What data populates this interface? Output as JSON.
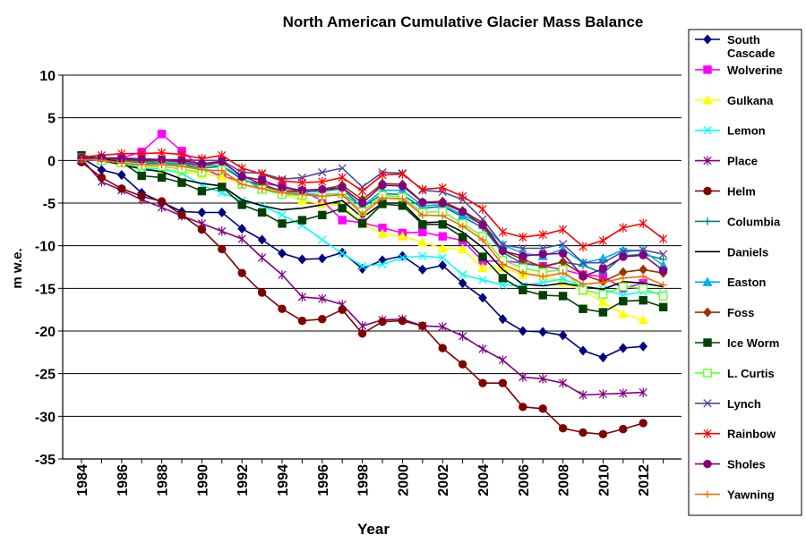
{
  "chart_data": {
    "type": "line",
    "title": "North American Cumulative Glacier Mass Balance",
    "xlabel": "Year",
    "ylabel": "m w.e.",
    "ylim": [
      -35,
      10
    ],
    "xlim": [
      1984,
      2013
    ],
    "yticks": [
      10,
      5,
      0,
      -5,
      -10,
      -15,
      -20,
      -25,
      -30,
      -35
    ],
    "xticks": [
      1984,
      1986,
      1988,
      1990,
      1992,
      1994,
      1996,
      1998,
      2000,
      2002,
      2004,
      2006,
      2008,
      2010,
      2012
    ],
    "grid": "horizontal",
    "legend_position": "right",
    "series": [
      {
        "name": "South Cascade",
        "color": "#000080",
        "marker": "diamond",
        "x": [
          1984,
          1985,
          1986,
          1987,
          1988,
          1989,
          1990,
          1991,
          1992,
          1993,
          1994,
          1995,
          1996,
          1997,
          1998,
          1999,
          2000,
          2001,
          2002,
          2003,
          2004,
          2005,
          2006,
          2007,
          2008,
          2009,
          2010,
          2011,
          2012
        ],
        "values": [
          0.3,
          -1.1,
          -1.7,
          -3.8,
          -4.9,
          -6.0,
          -6.1,
          -6.1,
          -8.0,
          -9.3,
          -10.9,
          -11.6,
          -11.5,
          -10.8,
          -12.7,
          -11.7,
          -11.2,
          -12.8,
          -12.3,
          -14.4,
          -16.1,
          -18.6,
          -20.0,
          -20.1,
          -20.5,
          -22.3,
          -23.1,
          -22.0,
          -21.8
        ]
      },
      {
        "name": "Wolverine",
        "color": "#FF00FF",
        "marker": "square",
        "x": [
          1984,
          1985,
          1986,
          1987,
          1988,
          1989,
          1990,
          1991,
          1992,
          1993,
          1994,
          1995,
          1996,
          1997,
          1998,
          1999,
          2000,
          2001,
          2002,
          2003,
          2004,
          2005,
          2006,
          2007,
          2008,
          2009,
          2010,
          2011,
          2012
        ],
        "values": [
          0.0,
          0.2,
          0.3,
          1.0,
          3.1,
          1.1,
          -0.9,
          -1.9,
          -2.4,
          -2.7,
          -3.0,
          -3.6,
          -4.7,
          -7.0,
          -7.3,
          -7.9,
          -8.5,
          -8.4,
          -8.9,
          -9.4,
          -11.8,
          -11.8,
          -12.0,
          -12.4,
          -12.8,
          -13.4,
          -13.6,
          -15.0,
          -14.4
        ]
      },
      {
        "name": "Gulkana",
        "color": "#FFFF00",
        "marker": "triangle",
        "x": [
          1984,
          1985,
          1986,
          1987,
          1988,
          1989,
          1990,
          1991,
          1992,
          1993,
          1994,
          1995,
          1996,
          1997,
          1998,
          1999,
          2000,
          2001,
          2002,
          2003,
          2004,
          2005,
          2006,
          2007,
          2008,
          2009,
          2010,
          2011,
          2012
        ],
        "values": [
          0.2,
          0.1,
          -0.1,
          -0.6,
          -1.0,
          -1.3,
          -1.6,
          -1.9,
          -2.8,
          -3.2,
          -3.9,
          -4.7,
          -5.1,
          -5.3,
          -7.4,
          -8.6,
          -8.9,
          -9.6,
          -10.3,
          -10.4,
          -12.6,
          -12.6,
          -13.4,
          -13.4,
          -14.3,
          -15.3,
          -16.6,
          -18.0,
          -18.7
        ]
      },
      {
        "name": "Lemon",
        "color": "#00FFFF",
        "marker": "x",
        "x": [
          1984,
          1985,
          1986,
          1987,
          1988,
          1989,
          1990,
          1991,
          1992,
          1993,
          1994,
          1995,
          1996,
          1997,
          1998,
          1999,
          2000,
          2001,
          2002,
          2003,
          2004,
          2005,
          2006,
          2007,
          2008,
          2009,
          2010,
          2011,
          2012,
          2013
        ],
        "values": [
          0.3,
          0.0,
          -0.2,
          -0.9,
          -1.0,
          -1.5,
          -2.9,
          -3.8,
          -4.7,
          -5.3,
          -6.4,
          -7.6,
          -9.3,
          -10.9,
          -12.4,
          -12.2,
          -11.4,
          -11.2,
          -11.4,
          -13.4,
          -14.0,
          -14.6,
          -14.7,
          -14.3,
          -13.9,
          -14.8,
          -15.1,
          -15.8,
          -15.4,
          -15.6
        ]
      },
      {
        "name": "Place",
        "color": "#800080",
        "marker": "star",
        "x": [
          1984,
          1985,
          1986,
          1987,
          1988,
          1989,
          1990,
          1991,
          1992,
          1993,
          1994,
          1995,
          1996,
          1997,
          1998,
          1999,
          2000,
          2001,
          2002,
          2003,
          2004,
          2005,
          2006,
          2007,
          2008,
          2009,
          2010,
          2011,
          2012
        ],
        "values": [
          0.2,
          -2.5,
          -3.5,
          -4.6,
          -5.5,
          -6.5,
          -7.4,
          -8.3,
          -9.2,
          -11.4,
          -13.4,
          -16.0,
          -16.2,
          -16.9,
          -19.4,
          -18.7,
          -18.6,
          -19.4,
          -19.5,
          -20.6,
          -22.1,
          -23.4,
          -25.4,
          -25.6,
          -26.1,
          -27.5,
          -27.4,
          -27.3,
          -27.2
        ]
      },
      {
        "name": "Helm",
        "color": "#800000",
        "marker": "circle",
        "x": [
          1984,
          1985,
          1986,
          1987,
          1988,
          1989,
          1990,
          1991,
          1992,
          1993,
          1994,
          1995,
          1996,
          1997,
          1998,
          1999,
          2000,
          2001,
          2002,
          2003,
          2004,
          2005,
          2006,
          2007,
          2008,
          2009,
          2010,
          2011,
          2012
        ],
        "values": [
          -0.2,
          -2.0,
          -3.3,
          -4.2,
          -4.8,
          -6.4,
          -8.1,
          -10.4,
          -13.2,
          -15.5,
          -17.4,
          -18.8,
          -18.6,
          -17.5,
          -20.3,
          -18.9,
          -18.8,
          -19.4,
          -22.0,
          -23.9,
          -26.1,
          -26.1,
          -28.9,
          -29.1,
          -31.4,
          -31.9,
          -32.1,
          -31.5,
          -30.8
        ]
      },
      {
        "name": "Columbia",
        "color": "#008080",
        "marker": "plus",
        "x": [
          1984,
          1985,
          1986,
          1987,
          1988,
          1989,
          1990,
          1991,
          1992,
          1993,
          1994,
          1995,
          1996,
          1997,
          1998,
          1999,
          2000,
          2001,
          2002,
          2003,
          2004,
          2005,
          2006,
          2007,
          2008,
          2009,
          2010,
          2011,
          2012,
          2013
        ],
        "values": [
          0.4,
          0.1,
          0.0,
          -0.3,
          -0.3,
          -0.5,
          -0.9,
          -0.7,
          -2.2,
          -3.0,
          -3.6,
          -3.7,
          -3.6,
          -3.3,
          -5.5,
          -3.9,
          -4.0,
          -5.6,
          -5.4,
          -6.6,
          -7.9,
          -10.8,
          -12.1,
          -12.4,
          -11.9,
          -12.3,
          -13.2,
          -11.2,
          -11.0,
          -11.6
        ]
      },
      {
        "name": "Daniels",
        "color": "#000000",
        "marker": "none",
        "x": [
          1984,
          1985,
          1986,
          1987,
          1988,
          1989,
          1990,
          1991,
          1992,
          1993,
          1994,
          1995,
          1996,
          1997,
          1998,
          1999,
          2000,
          2001,
          2002,
          2003,
          2004,
          2005,
          2006,
          2007,
          2008,
          2009,
          2010,
          2011,
          2012,
          2013
        ],
        "values": [
          0.2,
          0.0,
          -0.5,
          -1.0,
          -1.3,
          -2.2,
          -2.7,
          -3.0,
          -4.6,
          -5.3,
          -5.8,
          -5.6,
          -5.2,
          -4.7,
          -6.7,
          -5.0,
          -5.0,
          -7.3,
          -7.2,
          -8.4,
          -10.2,
          -12.8,
          -14.5,
          -14.7,
          -14.4,
          -14.8,
          -15.1,
          -14.2,
          -14.4,
          -14.8
        ]
      },
      {
        "name": "Easton",
        "color": "#00B0F0",
        "marker": "triangle",
        "x": [
          1984,
          1985,
          1986,
          1987,
          1988,
          1989,
          1990,
          1991,
          1992,
          1993,
          1994,
          1995,
          1996,
          1997,
          1998,
          1999,
          2000,
          2001,
          2002,
          2003,
          2004,
          2005,
          2006,
          2007,
          2008,
          2009,
          2010,
          2011,
          2012,
          2013
        ],
        "values": [
          0.3,
          0.1,
          0.1,
          -0.2,
          -0.2,
          -0.4,
          -0.6,
          -0.6,
          -2.0,
          -3.4,
          -3.8,
          -3.9,
          -4.0,
          -3.9,
          -5.4,
          -3.5,
          -3.5,
          -5.3,
          -5.2,
          -6.4,
          -7.5,
          -9.9,
          -10.9,
          -11.2,
          -10.4,
          -12.0,
          -11.5,
          -10.5,
          -10.6,
          -12.3
        ]
      },
      {
        "name": "Foss",
        "color": "#993300",
        "marker": "diamond",
        "x": [
          1984,
          1985,
          1986,
          1987,
          1988,
          1989,
          1990,
          1991,
          1992,
          1993,
          1994,
          1995,
          1996,
          1997,
          1998,
          1999,
          2000,
          2001,
          2002,
          2003,
          2004,
          2005,
          2006,
          2007,
          2008,
          2009,
          2010,
          2011,
          2012,
          2013
        ],
        "values": [
          0.2,
          0.2,
          0.1,
          -0.1,
          0.0,
          -0.2,
          -0.6,
          -0.2,
          -1.8,
          -2.8,
          -3.6,
          -3.5,
          -3.4,
          -2.9,
          -4.6,
          -2.7,
          -2.8,
          -4.9,
          -4.8,
          -5.9,
          -7.3,
          -10.6,
          -11.6,
          -12.5,
          -11.9,
          -13.4,
          -14.2,
          -13.1,
          -12.8,
          -13.2
        ]
      },
      {
        "name": "Ice Worm",
        "color": "#004000",
        "marker": "square",
        "x": [
          1984,
          1985,
          1986,
          1987,
          1988,
          1989,
          1990,
          1991,
          1992,
          1993,
          1994,
          1995,
          1996,
          1997,
          1998,
          1999,
          2000,
          2001,
          2002,
          2003,
          2004,
          2005,
          2006,
          2007,
          2008,
          2009,
          2010,
          2011,
          2012,
          2013
        ],
        "values": [
          0.6,
          0.2,
          -0.2,
          -1.8,
          -2.0,
          -2.6,
          -3.6,
          -3.1,
          -5.2,
          -6.1,
          -7.4,
          -7.0,
          -6.4,
          -5.6,
          -7.4,
          -5.1,
          -5.3,
          -7.5,
          -7.5,
          -9.0,
          -11.3,
          -13.8,
          -15.2,
          -15.8,
          -15.9,
          -17.4,
          -17.8,
          -16.5,
          -16.4,
          -17.2
        ]
      },
      {
        "name": "L. Curtis",
        "color": "#66FF33",
        "marker": "square-open",
        "x": [
          1984,
          1985,
          1986,
          1987,
          1988,
          1989,
          1990,
          1991,
          1992,
          1993,
          1994,
          1995,
          1996,
          1997,
          1998,
          1999,
          2000,
          2001,
          2002,
          2003,
          2004,
          2005,
          2006,
          2007,
          2008,
          2009,
          2010,
          2011,
          2012,
          2013
        ],
        "values": [
          0.3,
          0.0,
          -0.3,
          -0.6,
          -0.7,
          -1.0,
          -1.4,
          -1.1,
          -2.8,
          -3.4,
          -4.0,
          -4.1,
          -4.1,
          -3.9,
          -6.0,
          -4.1,
          -4.3,
          -6.1,
          -6.0,
          -7.4,
          -8.9,
          -11.7,
          -12.6,
          -13.1,
          -12.8,
          -15.2,
          -15.7,
          -14.8,
          -15.0,
          -15.9
        ]
      },
      {
        "name": "Lynch",
        "color": "#4B4B9B",
        "marker": "x",
        "x": [
          1984,
          1985,
          1986,
          1987,
          1988,
          1989,
          1990,
          1991,
          1992,
          1993,
          1994,
          1995,
          1996,
          1997,
          1998,
          1999,
          2000,
          2001,
          2002,
          2003,
          2004,
          2005,
          2006,
          2007,
          2008,
          2009,
          2010,
          2011,
          2012,
          2013
        ],
        "values": [
          0.2,
          0.3,
          0.3,
          0.2,
          0.1,
          0.1,
          0.0,
          0.0,
          -1.4,
          -1.5,
          -2.2,
          -2.0,
          -1.4,
          -0.9,
          -3.1,
          -1.4,
          -1.5,
          -3.5,
          -3.7,
          -4.6,
          -6.9,
          -9.9,
          -10.3,
          -10.3,
          -9.8,
          -12.0,
          -12.0,
          -10.7,
          -10.5,
          -11.0
        ]
      },
      {
        "name": "Rainbow",
        "color": "#FF0000",
        "marker": "star",
        "x": [
          1984,
          1985,
          1986,
          1987,
          1988,
          1989,
          1990,
          1991,
          1992,
          1993,
          1994,
          1995,
          1996,
          1997,
          1998,
          1999,
          2000,
          2001,
          2002,
          2003,
          2004,
          2005,
          2006,
          2007,
          2008,
          2009,
          2010,
          2011,
          2012,
          2013
        ],
        "values": [
          0.4,
          0.6,
          0.8,
          0.8,
          0.9,
          0.7,
          0.2,
          0.6,
          -0.9,
          -1.6,
          -2.4,
          -2.6,
          -2.5,
          -2.0,
          -3.6,
          -1.7,
          -1.6,
          -3.4,
          -3.2,
          -4.2,
          -5.7,
          -8.4,
          -9.0,
          -8.7,
          -8.1,
          -10.1,
          -9.4,
          -7.9,
          -7.4,
          -9.2
        ]
      },
      {
        "name": "Sholes",
        "color": "#800080",
        "marker": "circle",
        "x": [
          1984,
          1985,
          1986,
          1987,
          1988,
          1989,
          1990,
          1991,
          1992,
          1993,
          1994,
          1995,
          1996,
          1997,
          1998,
          1999,
          2000,
          2001,
          2002,
          2003,
          2004,
          2005,
          2006,
          2007,
          2008,
          2009,
          2010,
          2011,
          2012,
          2013
        ],
        "values": [
          0.3,
          0.3,
          0.2,
          0.1,
          0.1,
          0.0,
          -0.4,
          -0.1,
          -1.9,
          -2.3,
          -3.2,
          -3.5,
          -3.4,
          -3.2,
          -5.0,
          -2.9,
          -3.0,
          -4.9,
          -5.0,
          -6.0,
          -7.6,
          -10.6,
          -11.2,
          -11.0,
          -10.9,
          -13.6,
          -12.7,
          -11.3,
          -11.1,
          -12.9
        ]
      },
      {
        "name": "Yawning",
        "color": "#FF6600",
        "marker": "plus",
        "x": [
          1984,
          1985,
          1986,
          1987,
          1988,
          1989,
          1990,
          1991,
          1992,
          1993,
          1994,
          1995,
          1996,
          1997,
          1998,
          1999,
          2000,
          2001,
          2002,
          2003,
          2004,
          2005,
          2006,
          2007,
          2008,
          2009,
          2010,
          2011,
          2012,
          2013
        ],
        "values": [
          0.1,
          0.0,
          -0.3,
          -0.5,
          -0.5,
          -0.7,
          -1.1,
          -1.2,
          -2.8,
          -3.3,
          -3.8,
          -4.0,
          -4.2,
          -4.0,
          -6.3,
          -4.4,
          -4.5,
          -6.4,
          -6.5,
          -7.7,
          -9.3,
          -12.2,
          -13.2,
          -13.6,
          -13.2,
          -14.5,
          -14.3,
          -13.8,
          -13.6,
          -14.6
        ]
      }
    ]
  }
}
